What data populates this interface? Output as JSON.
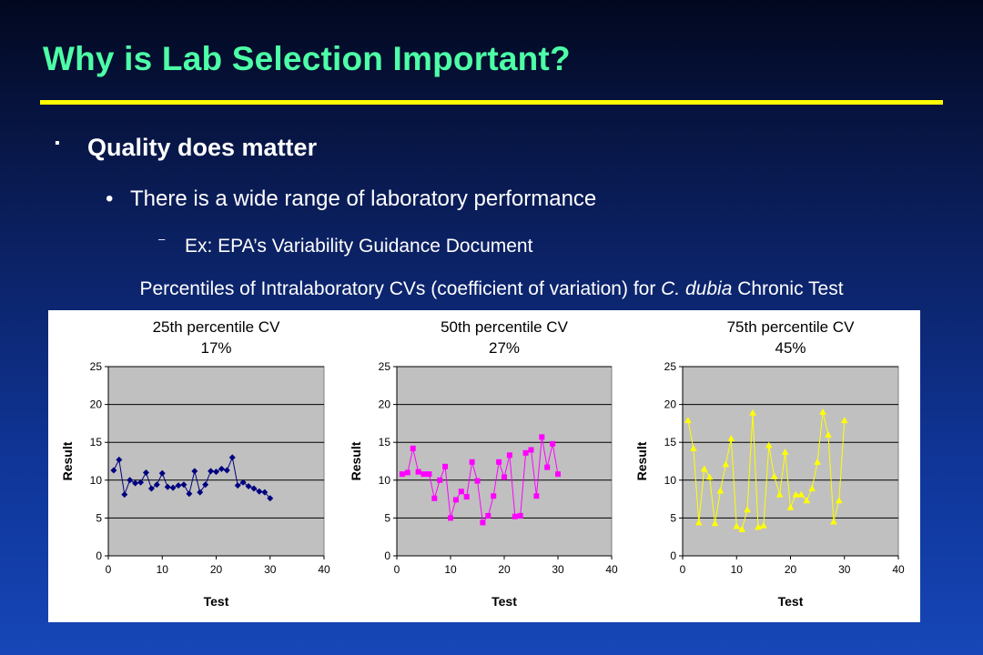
{
  "slide": {
    "title": "Why is Lab Selection Important?",
    "bullet1": "Quality does matter",
    "bullet1_marker": "▪",
    "bullet2": "There is a wide range of laboratory performance",
    "bullet2_marker": "•",
    "bullet3": "Ex: EPA’s Variability Guidance Document",
    "bullet3_marker": "–",
    "caption_before": "Percentiles of Intralaboratory CVs (coefficient of variation) for ",
    "caption_italic": "C. dubia",
    "caption_after": " Chronic Test"
  },
  "colors": {
    "title": "#4dffa6",
    "rule": "#ffff00",
    "plot_bg": "#c0c0c0"
  },
  "chart_data": [
    {
      "type": "line",
      "title": "25th percentile CV",
      "subtitle": "17%",
      "xlabel": "Test",
      "ylabel": "Result",
      "xlim": [
        0,
        40
      ],
      "ylim": [
        0,
        25
      ],
      "xticks": [
        0,
        10,
        20,
        30,
        40
      ],
      "yticks": [
        0,
        5,
        10,
        15,
        20,
        25
      ],
      "grid": "horizontal",
      "marker": "diamond",
      "color": "#000080",
      "x": [
        1,
        2,
        3,
        4,
        5,
        6,
        7,
        8,
        9,
        10,
        11,
        12,
        13,
        14,
        15,
        16,
        17,
        18,
        19,
        20,
        21,
        22,
        23,
        24,
        25,
        26,
        27,
        28,
        29,
        30
      ],
      "y": [
        11.3,
        12.7,
        8.1,
        10.0,
        9.6,
        9.7,
        11.0,
        8.9,
        9.4,
        10.9,
        9.1,
        9.0,
        9.3,
        9.4,
        8.2,
        11.2,
        8.4,
        9.4,
        11.2,
        11.1,
        11.5,
        11.3,
        13.0,
        9.3,
        9.7,
        9.2,
        8.9,
        8.5,
        8.4,
        7.6
      ]
    },
    {
      "type": "line",
      "title": "50th percentile CV",
      "subtitle": "27%",
      "xlabel": "Test",
      "ylabel": "Result",
      "xlim": [
        0,
        40
      ],
      "ylim": [
        0,
        25
      ],
      "xticks": [
        0,
        10,
        20,
        30,
        40
      ],
      "yticks": [
        0,
        5,
        10,
        15,
        20,
        25
      ],
      "grid": "horizontal",
      "marker": "square",
      "color": "#ff00ff",
      "x": [
        1,
        2,
        3,
        4,
        5,
        6,
        7,
        8,
        9,
        10,
        11,
        12,
        13,
        14,
        15,
        16,
        17,
        18,
        19,
        20,
        21,
        22,
        23,
        24,
        25,
        26,
        27,
        28,
        29,
        30
      ],
      "y": [
        10.8,
        11.0,
        14.2,
        11.1,
        10.8,
        10.8,
        7.6,
        10.0,
        11.8,
        5.0,
        7.4,
        8.5,
        7.8,
        12.4,
        9.9,
        4.4,
        5.3,
        7.9,
        12.4,
        10.4,
        13.3,
        5.2,
        5.3,
        13.6,
        14.0,
        7.9,
        15.7,
        11.7,
        14.8,
        10.8
      ]
    },
    {
      "type": "line",
      "title": "75th percentile CV",
      "subtitle": "45%",
      "xlabel": "Test",
      "ylabel": "Result",
      "xlim": [
        0,
        40
      ],
      "ylim": [
        0,
        25
      ],
      "xticks": [
        0,
        10,
        20,
        30,
        40
      ],
      "yticks": [
        0,
        5,
        10,
        15,
        20,
        25
      ],
      "grid": "horizontal",
      "marker": "triangle",
      "color": "#ffff00",
      "x": [
        1,
        2,
        3,
        4,
        5,
        6,
        7,
        8,
        9,
        10,
        11,
        12,
        13,
        14,
        15,
        16,
        17,
        18,
        19,
        20,
        21,
        22,
        23,
        24,
        25,
        26,
        27,
        28,
        29,
        30
      ],
      "y": [
        17.9,
        14.2,
        4.4,
        11.5,
        10.4,
        4.3,
        8.6,
        12.1,
        15.5,
        3.9,
        3.5,
        6.1,
        18.9,
        3.8,
        4.0,
        14.6,
        10.5,
        8.1,
        13.7,
        6.4,
        8.1,
        8.1,
        7.3,
        8.9,
        12.4,
        19.0,
        16.0,
        4.5,
        7.3,
        17.9
      ]
    }
  ]
}
